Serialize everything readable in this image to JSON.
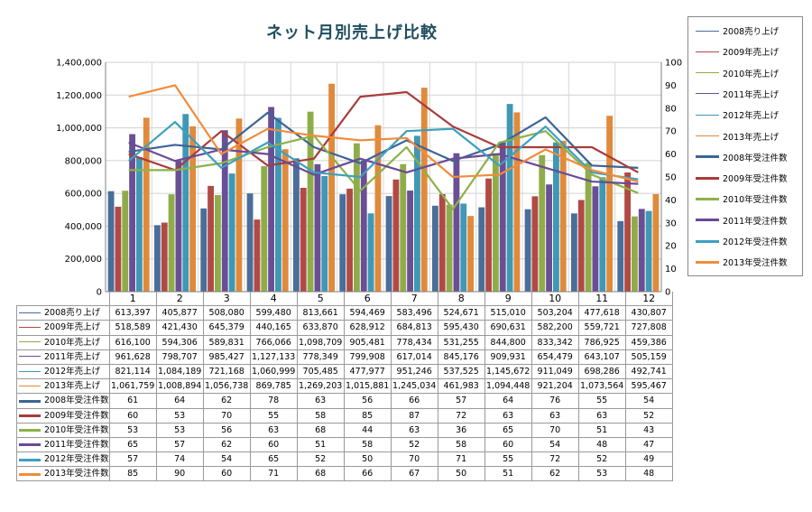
{
  "chart_data": {
    "type": "bar",
    "title": "ネット月別売上げ比較",
    "categories": [
      "1",
      "2",
      "3",
      "4",
      "5",
      "6",
      "7",
      "8",
      "9",
      "10",
      "11",
      "12"
    ],
    "y_left": {
      "ylim": [
        0,
        1400000
      ],
      "ticks": [
        "0",
        "200,000",
        "400,000",
        "600,000",
        "800,000",
        "1,000,000",
        "1,200,000",
        "1,400,000"
      ],
      "tick_values": [
        0,
        200000,
        400000,
        600000,
        800000,
        1000000,
        1200000,
        1400000
      ]
    },
    "y_right": {
      "ylim": [
        0,
        100
      ],
      "ticks": [
        "0",
        "10",
        "20",
        "30",
        "40",
        "50",
        "60",
        "70",
        "80",
        "90",
        "100"
      ],
      "tick_values": [
        0,
        10,
        20,
        30,
        40,
        50,
        60,
        70,
        80,
        90,
        100
      ]
    },
    "grid": true,
    "legend_position": "right",
    "bar_series": [
      {
        "name": "2008売り上げ",
        "color": "#4a6e9a",
        "values": [
          613397,
          405877,
          508080,
          599480,
          813661,
          594469,
          583496,
          524671,
          515010,
          503204,
          477618,
          430807
        ],
        "labels": [
          "613,397",
          "405,877",
          "508,080",
          "599,480",
          "813,661",
          "594,469",
          "583,496",
          "524,671",
          "515,010",
          "503,204",
          "477,618",
          "430,807"
        ]
      },
      {
        "name": "2009年売上げ",
        "color": "#b04a45",
        "values": [
          518589,
          421430,
          645379,
          440165,
          633870,
          628912,
          684813,
          595430,
          690631,
          582200,
          559721,
          727808
        ],
        "labels": [
          "518,589",
          "421,430",
          "645,379",
          "440,165",
          "633,870",
          "628,912",
          "684,813",
          "595,430",
          "690,631",
          "582,200",
          "559,721",
          "727,808"
        ]
      },
      {
        "name": "2010年売上げ",
        "color": "#8fac4a",
        "values": [
          616100,
          594306,
          589831,
          766066,
          1098709,
          905481,
          778434,
          531255,
          844800,
          833342,
          786925,
          459386
        ],
        "labels": [
          "616,100",
          "594,306",
          "589,831",
          "766,066",
          "1,098,709",
          "905,481",
          "778,434",
          "531,255",
          "844,800",
          "833,342",
          "786,925",
          "459,386"
        ]
      },
      {
        "name": "2011年売上げ",
        "color": "#6a4f94",
        "values": [
          961628,
          798707,
          985427,
          1127133,
          778349,
          799908,
          617014,
          845176,
          909931,
          654479,
          643107,
          505159
        ],
        "labels": [
          "961,628",
          "798,707",
          "985,427",
          "1,127,133",
          "778,349",
          "799,908",
          "617,014",
          "845,176",
          "909,931",
          "654,479",
          "643,107",
          "505,159"
        ]
      },
      {
        "name": "2012年売上げ",
        "color": "#3f98b4",
        "values": [
          821114,
          1084189,
          721168,
          1060999,
          705485,
          477977,
          951246,
          537525,
          1145672,
          911049,
          698286,
          492741
        ],
        "labels": [
          "821,114",
          "1,084,189",
          "721,168",
          "1,060,999",
          "705,485",
          "477,977",
          "951,246",
          "537,525",
          "1,145,672",
          "911,049",
          "698,286",
          "492,741"
        ]
      },
      {
        "name": "2013年売上げ",
        "color": "#e08a3c",
        "values": [
          1061759,
          1008894,
          1056738,
          869785,
          1269203,
          1015881,
          1245034,
          461983,
          1094448,
          921204,
          1073564,
          595467
        ],
        "labels": [
          "1,061,759",
          "1,008,894",
          "1,056,738",
          "869,785",
          "1,269,203",
          "1,015,881",
          "1,245,034",
          "461,983",
          "1,094,448",
          "921,204",
          "1,073,564",
          "595,467"
        ]
      }
    ],
    "line_series": [
      {
        "name": "2008年受注件数",
        "color": "#3c6496",
        "values": [
          61,
          64,
          62,
          78,
          63,
          56,
          66,
          57,
          64,
          76,
          55,
          54
        ]
      },
      {
        "name": "2009年受注件数",
        "color": "#a83c3c",
        "values": [
          60,
          53,
          70,
          55,
          58,
          85,
          87,
          72,
          63,
          63,
          63,
          52
        ]
      },
      {
        "name": "2010年受注件数",
        "color": "#8db14a",
        "values": [
          53,
          53,
          56,
          63,
          68,
          44,
          63,
          36,
          65,
          70,
          51,
          43
        ]
      },
      {
        "name": "2011年受注件数",
        "color": "#6a4a96",
        "values": [
          65,
          57,
          62,
          60,
          51,
          58,
          52,
          58,
          60,
          54,
          48,
          47
        ]
      },
      {
        "name": "2012年受注件数",
        "color": "#3ca0c0",
        "values": [
          57,
          74,
          54,
          65,
          52,
          50,
          70,
          71,
          55,
          72,
          52,
          49
        ]
      },
      {
        "name": "2013年受注件数",
        "color": "#f08c3c",
        "values": [
          85,
          90,
          60,
          71,
          68,
          66,
          67,
          50,
          51,
          62,
          53,
          48
        ]
      }
    ],
    "legend": [
      {
        "label": "2008売り上げ",
        "color": "#4a6e9a",
        "kind": "thin"
      },
      {
        "label": "2009年売上げ",
        "color": "#b04a45",
        "kind": "thin"
      },
      {
        "label": "2010年売上げ",
        "color": "#8fac4a",
        "kind": "thin"
      },
      {
        "label": "2011年売上げ",
        "color": "#6a4f94",
        "kind": "thin"
      },
      {
        "label": "2012年売上げ",
        "color": "#3f98b4",
        "kind": "thin"
      },
      {
        "label": "2013年売上げ",
        "color": "#e08a3c",
        "kind": "thin"
      },
      {
        "label": "2008年受注件数",
        "color": "#3c6496",
        "kind": "thick"
      },
      {
        "label": "2009年受注件数",
        "color": "#a83c3c",
        "kind": "thick"
      },
      {
        "label": "2010年受注件数",
        "color": "#8db14a",
        "kind": "thick"
      },
      {
        "label": "2011年受注件数",
        "color": "#6a4a96",
        "kind": "thick"
      },
      {
        "label": "2012年受注件数",
        "color": "#3ca0c0",
        "kind": "thick"
      },
      {
        "label": "2013年受注件数",
        "color": "#f08c3c",
        "kind": "thick"
      }
    ],
    "table_rows": [
      {
        "label": "2008売り上げ",
        "color": "#4a6e9a",
        "kind": "thin",
        "cells": [
          "613,397",
          "405,877",
          "508,080",
          "599,480",
          "813,661",
          "594,469",
          "583,496",
          "524,671",
          "515,010",
          "503,204",
          "477,618",
          "430,807"
        ]
      },
      {
        "label": "2009年売上げ",
        "color": "#b04a45",
        "kind": "thin",
        "cells": [
          "518,589",
          "421,430",
          "645,379",
          "440,165",
          "633,870",
          "628,912",
          "684,813",
          "595,430",
          "690,631",
          "582,200",
          "559,721",
          "727,808"
        ]
      },
      {
        "label": "2010年売上げ",
        "color": "#8fac4a",
        "kind": "thin",
        "cells": [
          "616,100",
          "594,306",
          "589,831",
          "766,066",
          "1,098,709",
          "905,481",
          "778,434",
          "531,255",
          "844,800",
          "833,342",
          "786,925",
          "459,386"
        ]
      },
      {
        "label": "2011年売上げ",
        "color": "#6a4f94",
        "kind": "thin",
        "cells": [
          "961,628",
          "798,707",
          "985,427",
          "1,127,133",
          "778,349",
          "799,908",
          "617,014",
          "845,176",
          "909,931",
          "654,479",
          "643,107",
          "505,159"
        ]
      },
      {
        "label": "2012年売上げ",
        "color": "#3f98b4",
        "kind": "thin",
        "cells": [
          "821,114",
          "1,084,189",
          "721,168",
          "1,060,999",
          "705,485",
          "477,977",
          "951,246",
          "537,525",
          "1,145,672",
          "911,049",
          "698,286",
          "492,741"
        ]
      },
      {
        "label": "2013年売上げ",
        "color": "#e08a3c",
        "kind": "thin",
        "cells": [
          "1,061,759",
          "1,008,894",
          "1,056,738",
          "869,785",
          "1,269,203",
          "1,015,881",
          "1,245,034",
          "461,983",
          "1,094,448",
          "921,204",
          "1,073,564",
          "595,467"
        ]
      },
      {
        "label": "2008年受注件数",
        "color": "#3c6496",
        "kind": "thick",
        "cells": [
          "61",
          "64",
          "62",
          "78",
          "63",
          "56",
          "66",
          "57",
          "64",
          "76",
          "55",
          "54"
        ]
      },
      {
        "label": "2009年受注件数",
        "color": "#a83c3c",
        "kind": "thick",
        "cells": [
          "60",
          "53",
          "70",
          "55",
          "58",
          "85",
          "87",
          "72",
          "63",
          "63",
          "63",
          "52"
        ]
      },
      {
        "label": "2010年受注件数",
        "color": "#8db14a",
        "kind": "thick",
        "cells": [
          "53",
          "53",
          "56",
          "63",
          "68",
          "44",
          "63",
          "36",
          "65",
          "70",
          "51",
          "43"
        ]
      },
      {
        "label": "2011年受注件数",
        "color": "#6a4a96",
        "kind": "thick",
        "cells": [
          "65",
          "57",
          "62",
          "60",
          "51",
          "58",
          "52",
          "58",
          "60",
          "54",
          "48",
          "47"
        ]
      },
      {
        "label": "2012年受注件数",
        "color": "#3ca0c0",
        "kind": "thick",
        "cells": [
          "57",
          "74",
          "54",
          "65",
          "52",
          "50",
          "70",
          "71",
          "55",
          "72",
          "52",
          "49"
        ]
      },
      {
        "label": "2013年受注件数",
        "color": "#f08c3c",
        "kind": "thick",
        "cells": [
          "85",
          "90",
          "60",
          "71",
          "68",
          "66",
          "67",
          "50",
          "51",
          "62",
          "53",
          "48"
        ]
      }
    ]
  }
}
